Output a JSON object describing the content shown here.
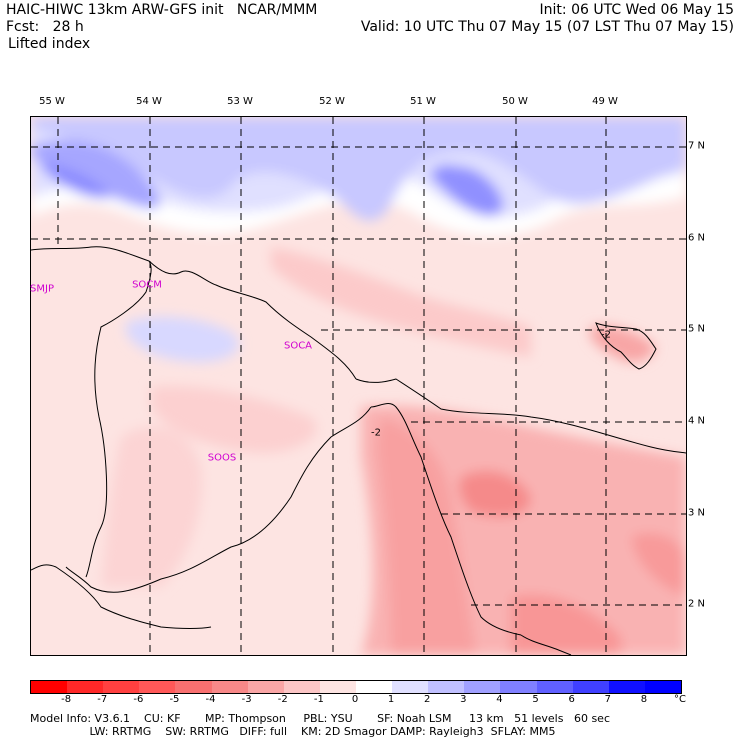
{
  "header": {
    "line1_left": "HAIC-HIWC 13km ARW-GFS init   NCAR/MMM",
    "line2_left": "Fcst:   28 h",
    "line3_left": "Lifted index",
    "line1_right": "Init: 06 UTC Wed 06 May 15",
    "line2_right": "Valid: 10 UTC Thu 07 May 15 (07 LST Thu 07 May 15)"
  },
  "map": {
    "longitudes": [
      "55 W",
      "54 W",
      "53 W",
      "52 W",
      "51 W",
      "50 W",
      "49 W"
    ],
    "latitudes": [
      "7 N",
      "6 N",
      "5 N",
      "4 N",
      "3 N",
      "2 N"
    ],
    "stations": [
      {
        "id": "SMJP"
      },
      {
        "id": "SOCM"
      },
      {
        "id": "SOCA"
      },
      {
        "id": "SOOS"
      }
    ],
    "contour_labels": [
      "-2",
      "-2"
    ]
  },
  "colorbar": {
    "labels": [
      "-8",
      "-7",
      "-6",
      "-5",
      "-4",
      "-3",
      "-2",
      "-1",
      "0",
      "1",
      "2",
      "3",
      "4",
      "5",
      "6",
      "7",
      "8"
    ],
    "unit": "°C",
    "colors": [
      "#ff0000",
      "#ff2828",
      "#ff4040",
      "#ff5858",
      "#f87070",
      "#f88888",
      "#faa6a6",
      "#fcc6c6",
      "#fde4e2",
      "#ffffff",
      "#e0e0ff",
      "#c0c0ff",
      "#a0a0ff",
      "#8080ff",
      "#6060ff",
      "#4040ff",
      "#1010ff",
      "#0000ff"
    ]
  },
  "footer": {
    "line1": "Model Info: V3.6.1    CU: KF       MP: Thompson     PBL: YSU       SF: Noah LSM     13 km   51 levels   60 sec",
    "line2": "                 LW: RRTMG    SW: RRTMG   DIFF: full    KM: 2D Smagor DAMP: Rayleigh3  SFLAY: MM5"
  }
}
